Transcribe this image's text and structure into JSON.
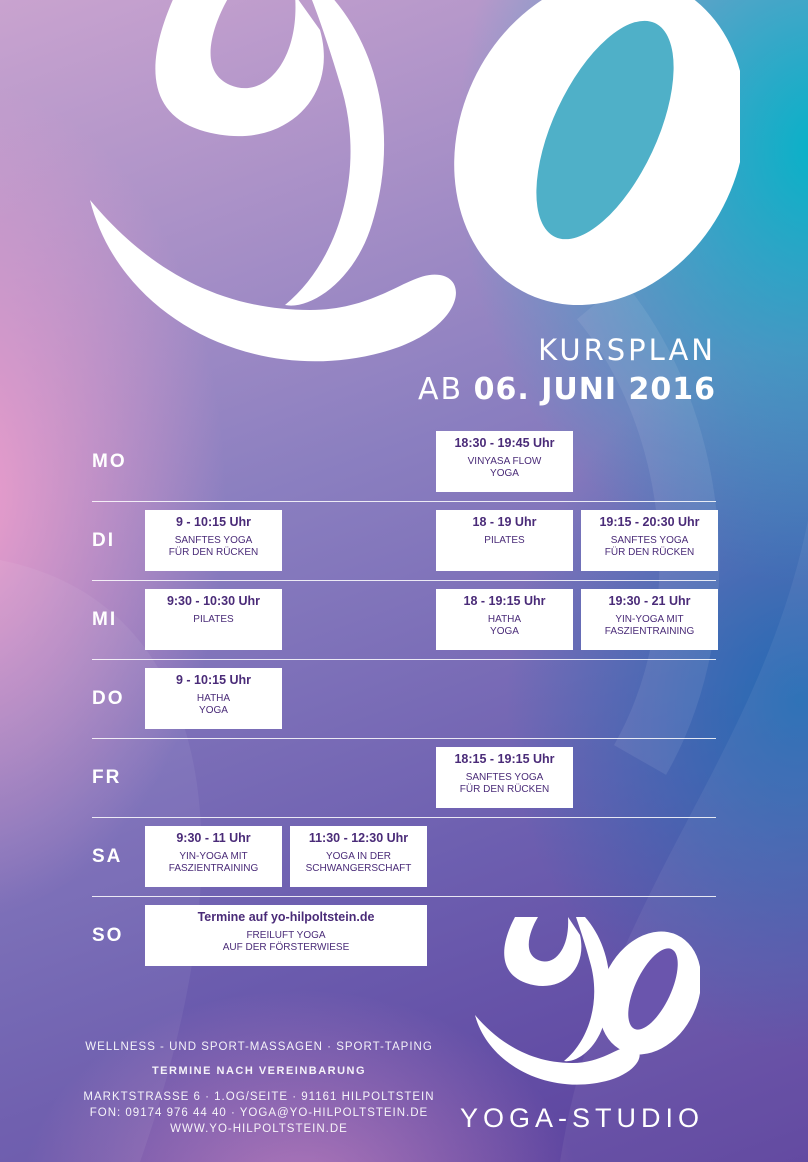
{
  "header": {
    "title": "KURSPLAN",
    "subtitle_prefix": "AB",
    "subtitle_date": "06. JUNI 2016"
  },
  "schedule": [
    {
      "day": "MO",
      "slots": [
        null,
        null,
        {
          "time": "18:30 - 19:45 Uhr",
          "line1": "VINYASA FLOW",
          "line2": "YOGA"
        },
        null
      ]
    },
    {
      "day": "DI",
      "slots": [
        {
          "time": "9 - 10:15 Uhr",
          "line1": "SANFTES YOGA",
          "line2": "FÜR DEN RÜCKEN"
        },
        null,
        {
          "time": "18 - 19 Uhr",
          "line1": "PILATES",
          "line2": ""
        },
        {
          "time": "19:15 - 20:30 Uhr",
          "line1": "SANFTES YOGA",
          "line2": "FÜR DEN RÜCKEN"
        }
      ]
    },
    {
      "day": "MI",
      "slots": [
        {
          "time": "9:30 - 10:30 Uhr",
          "line1": "PILATES",
          "line2": ""
        },
        null,
        {
          "time": "18 - 19:15 Uhr",
          "line1": "HATHA",
          "line2": "YOGA"
        },
        {
          "time": "19:30 - 21 Uhr",
          "line1": "YIN-YOGA MIT",
          "line2": "FASZIENTRAINING"
        }
      ]
    },
    {
      "day": "DO",
      "slots": [
        {
          "time": "9 - 10:15 Uhr",
          "line1": "HATHA",
          "line2": "YOGA"
        },
        null,
        null,
        null
      ]
    },
    {
      "day": "FR",
      "slots": [
        null,
        null,
        {
          "time": "18:15 - 19:15 Uhr",
          "line1": "SANFTES YOGA",
          "line2": "FÜR DEN RÜCKEN"
        },
        null
      ]
    },
    {
      "day": "SA",
      "slots": [
        {
          "time": "9:30 - 11 Uhr",
          "line1": "YIN-YOGA MIT",
          "line2": "FASZIENTRAINING"
        },
        {
          "time": "11:30 - 12:30 Uhr",
          "line1": "YOGA IN DER",
          "line2": "SCHWANGERSCHAFT"
        },
        null,
        null
      ]
    },
    {
      "day": "SO",
      "wide": {
        "time": "Termine auf yo-hilpoltstein.de",
        "line1": "FREILUFT YOGA",
        "line2": "AUF DER FÖRSTERWIESE"
      }
    }
  ],
  "footer": {
    "services": "WELLNESS - UND SPORT-MASSAGEN · SPORT-TAPING",
    "appointments": "TERMINE NACH VEREINBARUNG",
    "address": "MARKTSTRASSE 6 · 1.OG/SEITE · 91161 HILPOLTSTEIN",
    "contact": "FON: 09174 976 44 40 · YOGA@YO-HILPOLTSTEIN.DE",
    "website": "WWW.YO-HILPOLTSTEIN.DE"
  },
  "brand": {
    "name": "YOGA-STUDIO",
    "logo_icon": "yo-logo-icon"
  }
}
